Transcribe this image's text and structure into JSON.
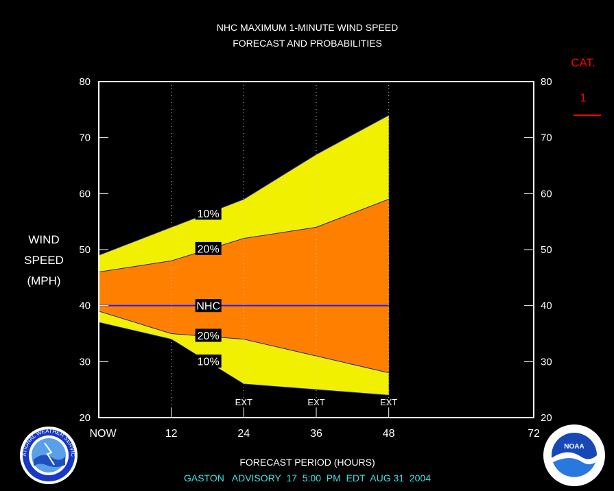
{
  "title_line1": "NHC MAXIMUM 1-MINUTE WIND SPEED",
  "title_line2": "FORECAST AND PROBABILITIES",
  "ylabel_lines": [
    "WIND",
    "SPEED",
    "(MPH)"
  ],
  "xlabel": "FORECAST PERIOD (HOURS)",
  "advisory": "GASTON   ADVISORY  17  5:00  PM  EDT  AUG 31  2004",
  "cat_label": "CAT.",
  "cat_value": "1",
  "colors": {
    "background": "#000000",
    "outer_band": "#f0f000",
    "inner_band": "#ff8000",
    "nhc_line": "#1e1eff",
    "edge_line": "#2020c0",
    "frame": "#ffffff",
    "cat": "#ff0000",
    "advisory": "#40e0e0"
  },
  "logos": [
    {
      "name": "noaa-nws-logo",
      "text": "NATIONAL WEATHER SERVICE"
    },
    {
      "name": "noaa-logo",
      "text": "NOAA"
    }
  ],
  "chart_data": {
    "type": "area",
    "xlim": [
      0,
      72
    ],
    "ylim": [
      20,
      80
    ],
    "x_ticks": [
      {
        "value": 0,
        "label": "NOW"
      },
      {
        "value": 12,
        "label": "12"
      },
      {
        "value": 24,
        "label": "24"
      },
      {
        "value": 36,
        "label": "36"
      },
      {
        "value": 48,
        "label": "48"
      },
      {
        "value": 72,
        "label": "72"
      }
    ],
    "y_ticks": [
      20,
      30,
      40,
      50,
      60,
      70,
      80
    ],
    "ext_labels": [
      {
        "x": 24,
        "label": "EXT"
      },
      {
        "x": 36,
        "label": "EXT"
      },
      {
        "x": 48,
        "label": "EXT"
      }
    ],
    "dotted_verticals": [
      12,
      24,
      36,
      48
    ],
    "x": [
      0,
      12,
      24,
      36,
      48
    ],
    "series": [
      {
        "name": "10%",
        "role": "upper10",
        "values": [
          49,
          54,
          59,
          67,
          74
        ]
      },
      {
        "name": "20%",
        "role": "upper20",
        "values": [
          46,
          48,
          52,
          54,
          59
        ]
      },
      {
        "name": "NHC",
        "role": "nhc",
        "values": [
          40,
          40,
          40,
          40,
          40
        ]
      },
      {
        "name": "20%",
        "role": "lower20",
        "values": [
          39,
          35,
          34,
          31,
          28
        ]
      },
      {
        "name": "10%",
        "role": "lower10",
        "values": [
          37,
          34,
          26,
          25,
          24
        ]
      }
    ],
    "band_labels": [
      {
        "text": "10%",
        "y": 56.5
      },
      {
        "text": "20%",
        "y": 50.2
      },
      {
        "text": "NHC",
        "y": 40
      },
      {
        "text": "20%",
        "y": 34.7
      },
      {
        "text": "10%",
        "y": 30.1
      }
    ]
  }
}
